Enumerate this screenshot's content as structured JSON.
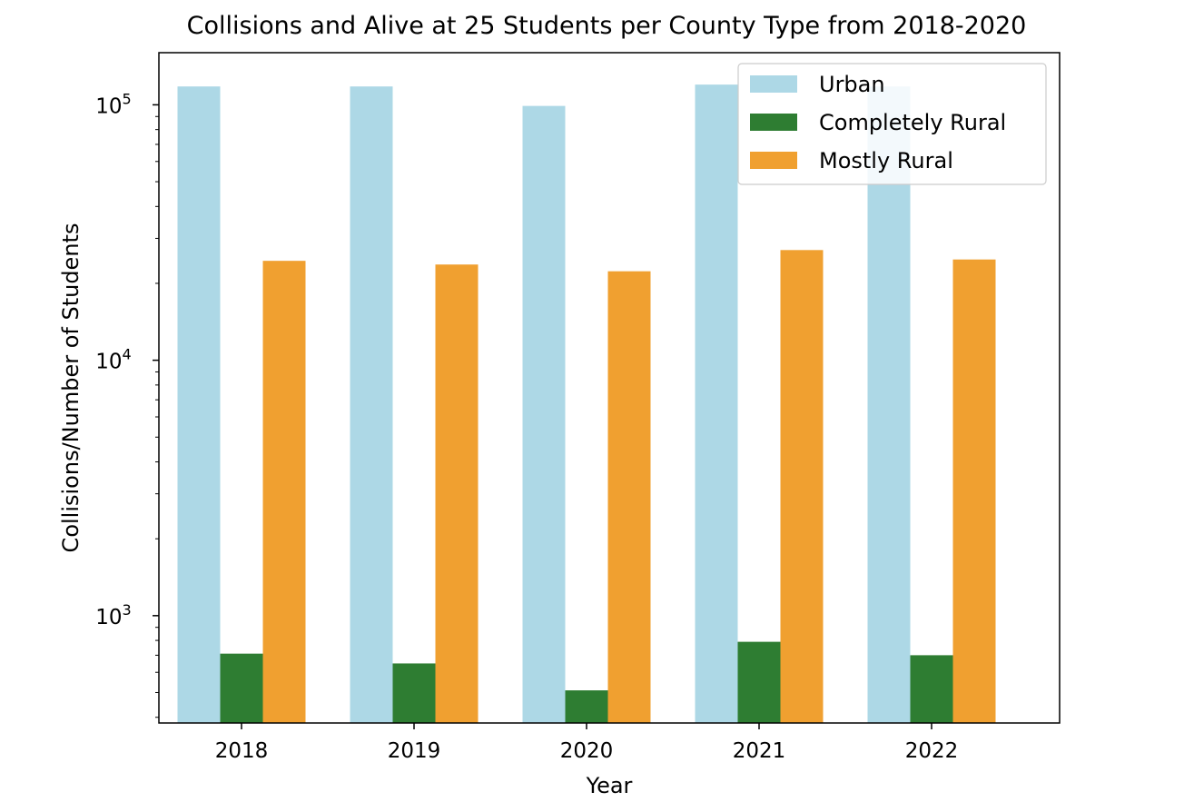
{
  "chart_data": {
    "type": "bar",
    "title": "Collisions and Alive at 25 Students per County Type from 2018-2020",
    "xlabel": "Year",
    "ylabel": "Collisions/Number of Students",
    "yscale": "log",
    "ylim": [
      380,
      160000
    ],
    "yticks": [
      {
        "value": 1000,
        "base": "10",
        "exp": "3"
      },
      {
        "value": 10000,
        "base": "10",
        "exp": "4"
      },
      {
        "value": 100000,
        "base": "10",
        "exp": "5"
      }
    ],
    "categories": [
      "2018",
      "2019",
      "2020",
      "2021",
      "2022"
    ],
    "series": [
      {
        "name": "Urban",
        "color": "#add8e6",
        "values": [
          118000,
          118000,
          99000,
          120000,
          118000
        ]
      },
      {
        "name": "Completely Rural",
        "color": "#2e7d32",
        "values": [
          710,
          650,
          510,
          790,
          700
        ]
      },
      {
        "name": "Mostly Rural",
        "color": "#f0a030",
        "values": [
          24500,
          23700,
          22300,
          27000,
          24800
        ]
      }
    ],
    "legend": "top-right",
    "grid": false
  }
}
